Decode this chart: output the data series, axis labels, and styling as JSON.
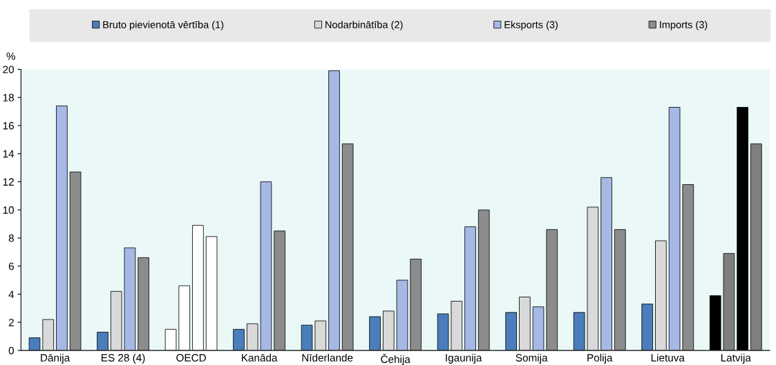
{
  "chart_data": {
    "type": "bar",
    "ylabel": "%",
    "categories": [
      "Dānija",
      "ES 28 (4)",
      "OECD",
      "Kanāda",
      "Nīderlande",
      "Čehija",
      "Igaunija",
      "Somija",
      "Polija",
      "Lietuva",
      "Latvija"
    ],
    "series": [
      {
        "name": "Bruto pievienotā vērtība (1)",
        "color": "#4a7ebb",
        "values": [
          0.9,
          1.3,
          1.5,
          1.5,
          1.8,
          2.4,
          2.6,
          2.7,
          2.7,
          3.3,
          3.9
        ],
        "colors": [
          "#4a7ebb",
          "#4a7ebb",
          "#ffffff",
          "#4a7ebb",
          "#4a7ebb",
          "#4a7ebb",
          "#4a7ebb",
          "#4a7ebb",
          "#4a7ebb",
          "#4a7ebb",
          "#000000"
        ]
      },
      {
        "name": "Nodarbinātība (2)",
        "color": "#d9d9d9",
        "values": [
          2.2,
          4.2,
          4.6,
          1.9,
          2.1,
          2.8,
          3.5,
          3.8,
          10.2,
          7.8,
          6.9
        ],
        "colors": [
          "#d9d9d9",
          "#d9d9d9",
          "#ffffff",
          "#d9d9d9",
          "#d9d9d9",
          "#d9d9d9",
          "#d9d9d9",
          "#d9d9d9",
          "#d9d9d9",
          "#d9d9d9",
          "#7f7f7f"
        ]
      },
      {
        "name": "Eksports (3)",
        "color": "#a6b9e4",
        "values": [
          17.4,
          7.3,
          8.9,
          12.0,
          19.9,
          5.0,
          8.8,
          3.1,
          12.3,
          17.3,
          17.3
        ],
        "colors": [
          "#a6b9e4",
          "#a6b9e4",
          "#ffffff",
          "#a6b9e4",
          "#a6b9e4",
          "#a6b9e4",
          "#a6b9e4",
          "#a6b9e4",
          "#a6b9e4",
          "#a6b9e4",
          "#000000"
        ]
      },
      {
        "name": "Imports (3)",
        "color": "#8c8c8c",
        "values": [
          12.7,
          6.6,
          8.1,
          8.5,
          14.7,
          6.5,
          10.0,
          8.6,
          8.6,
          11.8,
          14.7
        ],
        "colors": [
          "#8c8c8c",
          "#8c8c8c",
          "#ffffff",
          "#8c8c8c",
          "#8c8c8c",
          "#8c8c8c",
          "#8c8c8c",
          "#8c8c8c",
          "#8c8c8c",
          "#8c8c8c",
          "#7f7f7f"
        ]
      }
    ],
    "ylim": [
      0,
      20
    ],
    "yticks": [
      0,
      2,
      4,
      6,
      8,
      10,
      12,
      14,
      16,
      18,
      20
    ],
    "grid": false,
    "legend": "top"
  }
}
